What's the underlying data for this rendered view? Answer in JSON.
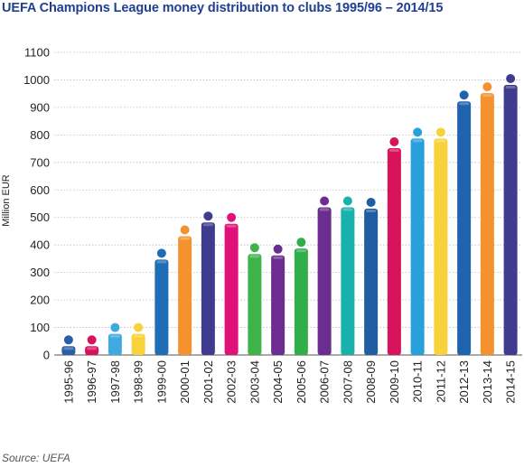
{
  "chart_data": {
    "type": "bar",
    "title": "UEFA Champions League money distribution to clubs 1995/96 – 2014/15",
    "ylabel": "Million EUR",
    "xlabel": "",
    "source": "Source:  UEFA",
    "ylim": [
      0,
      1100
    ],
    "yticks": [
      0,
      100,
      200,
      300,
      400,
      500,
      600,
      700,
      800,
      900,
      1000,
      1100
    ],
    "grid": true,
    "legend": "none",
    "categories": [
      "1995-96",
      "1996-97",
      "1997-98",
      "1998-99",
      "1999-00",
      "2000-01",
      "2001-02",
      "2002-03",
      "2003-04",
      "2004-05",
      "2005-06",
      "2006-07",
      "2007-08",
      "2008-09",
      "2009-10",
      "2010-11",
      "2011-12",
      "2012-13",
      "2013-14",
      "2014-15"
    ],
    "values": [
      45,
      45,
      90,
      90,
      360,
      445,
      495,
      490,
      380,
      375,
      400,
      550,
      550,
      545,
      765,
      800,
      800,
      935,
      965,
      995
    ],
    "colors": [
      "#2a5ea8",
      "#d8125b",
      "#3fa9e0",
      "#f8d23a",
      "#1f6db5",
      "#f3922e",
      "#3f3b8e",
      "#e0127a",
      "#3db34a",
      "#6b2d8f",
      "#2fae4a",
      "#6b2d8f",
      "#19b1ac",
      "#1f5ea3",
      "#d8125b",
      "#27a0dc",
      "#f8d23a",
      "#1f62ad",
      "#f3922e",
      "#3f3b8e"
    ]
  }
}
